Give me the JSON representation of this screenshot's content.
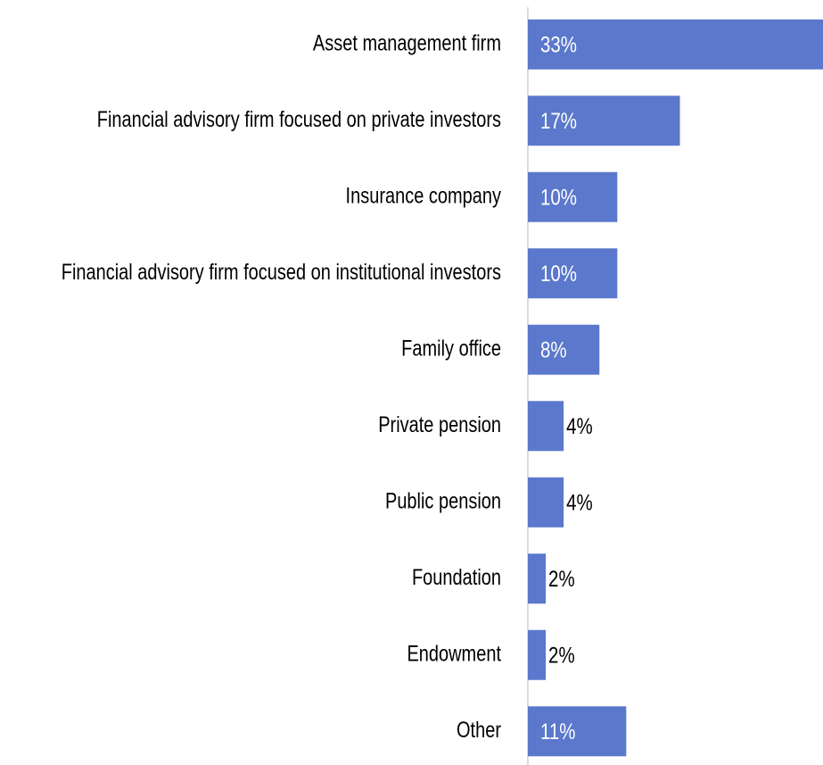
{
  "chart_data": {
    "type": "bar",
    "orientation": "horizontal",
    "categories": [
      "Asset management firm",
      "Financial advisory firm focused on private investors",
      "Insurance company",
      "Financial advisory firm focused on institutional investors",
      "Family office",
      "Private pension",
      "Public pension",
      "Foundation",
      "Endowment",
      "Other"
    ],
    "values": [
      33,
      17,
      10,
      10,
      8,
      4,
      4,
      2,
      2,
      11
    ],
    "value_labels": [
      "33%",
      "17%",
      "10%",
      "10%",
      "8%",
      "4%",
      "4%",
      "2%",
      "2%",
      "11%"
    ],
    "color": "#5b78cc",
    "xlim": [
      0,
      33
    ]
  }
}
